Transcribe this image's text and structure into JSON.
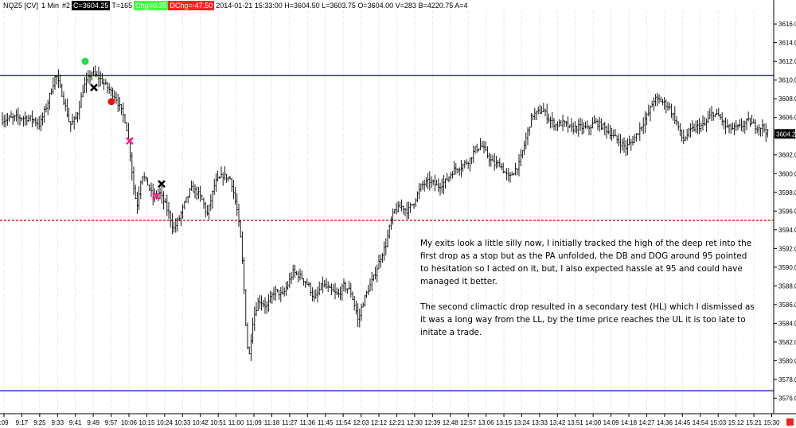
{
  "header": {
    "symbol": "NQZ5 [CV]",
    "interval": "1 Min",
    "chart_no": "#2",
    "close": "C=3604.25",
    "ticks": "T=165",
    "chg": "Chg=0.25",
    "dchg": "DChg=-47.50",
    "stats": "2014-01-21 15:33:00 H=3604.50 L=3603.75 O=3604.00 V=283 B=4220.75 A=4221.00 1x8 0 BV=217 AV=66 DV=68876"
  },
  "colors": {
    "grid": "#bdbdbd",
    "candle": "#000000",
    "resistance_line": "#0000cc",
    "support_line": "#0000cc",
    "dotted_line": "#e01010",
    "green_marker": "#22dd44",
    "red_marker": "#ee1111",
    "pink_marker": "#ff1f8f",
    "black_marker": "#000000",
    "price_label_bg": "#000000",
    "corner_box": "#e8261f"
  },
  "annotation": {
    "paragraph1": "My exits look a little silly now, I initially tracked the high of the deep ret into the first drop as a stop but as the PA unfolded, the DB and DOG around 95 pointed to hesitation so I acted on it, but, I also expected hassle at 95 and could have managed it better.",
    "paragraph2": "The second climactic drop resulted in a secondary test (HL) which I dismissed as it was a long way from the LL, by the time price reaches the UL it is too late to initate a trade."
  },
  "chart_data": {
    "type": "candlestick",
    "ylim": [
      3574,
      3618
    ],
    "y_ticks": [
      "3576.00",
      "3578.00",
      "3580.00",
      "3582.00",
      "3584.00",
      "3586.00",
      "3588.00",
      "3590.00",
      "3592.00",
      "3594.00",
      "3596.00",
      "3598.00",
      "3600.00",
      "3602.00",
      "3604.00",
      "3606.00",
      "3608.00",
      "3610.00",
      "3612.00",
      "3614.00",
      "3616.00"
    ],
    "x_ticks": [
      ":09",
      "9:17",
      "9:25",
      "9:33",
      "9:41",
      "9:49",
      "9:57",
      "10:06",
      "10:15",
      "10:24",
      "10:33",
      "10:42",
      "10:51",
      "11:00",
      "11:09",
      "11:18",
      "11:27",
      "11:36",
      "11:45",
      "11:54",
      "12:03",
      "12:12",
      "12:21",
      "12:30",
      "12:39",
      "12:48",
      "12:57",
      "13:06",
      "13:15",
      "13:24",
      "13:33",
      "13:42",
      "13:51",
      "14:00",
      "14:09",
      "14:18",
      "14:27",
      "14:36",
      "14:45",
      "14:54",
      "15:03",
      "15:12",
      "15:21",
      "15:30"
    ],
    "last_price_label": "3604.25",
    "last_price": 3604.25,
    "horizontal_lines": [
      {
        "price": 3610.5,
        "style": "solid",
        "role": "upper"
      },
      {
        "price": 3595.0,
        "style": "dotted",
        "role": "middle"
      },
      {
        "price": 3576.8,
        "style": "solid",
        "role": "lower"
      }
    ],
    "close_path": [
      [
        0,
        3605.7
      ],
      [
        20,
        3606.0
      ],
      [
        40,
        3605.9
      ],
      [
        50,
        3605.2
      ],
      [
        60,
        3607.6
      ],
      [
        70,
        3610.6
      ],
      [
        78,
        3608.5
      ],
      [
        88,
        3605.2
      ],
      [
        96,
        3606.0
      ],
      [
        105,
        3609.2
      ],
      [
        115,
        3610.8
      ],
      [
        125,
        3610.2
      ],
      [
        135,
        3609.2
      ],
      [
        145,
        3608.2
      ],
      [
        152,
        3606.8
      ],
      [
        158,
        3605.5
      ],
      [
        163,
        3602.6
      ],
      [
        168,
        3598.5
      ],
      [
        172,
        3596.5
      ],
      [
        178,
        3600.0
      ],
      [
        185,
        3599.0
      ],
      [
        192,
        3597.5
      ],
      [
        200,
        3598.0
      ],
      [
        207,
        3596.8
      ],
      [
        213,
        3595.5
      ],
      [
        218,
        3594.0
      ],
      [
        225,
        3595.2
      ],
      [
        232,
        3596.8
      ],
      [
        240,
        3598.4
      ],
      [
        248,
        3598.0
      ],
      [
        255,
        3597.0
      ],
      [
        260,
        3595.5
      ],
      [
        265,
        3597.2
      ],
      [
        270,
        3599.0
      ],
      [
        280,
        3599.8
      ],
      [
        290,
        3599.4
      ],
      [
        298,
        3596.0
      ],
      [
        303,
        3592.5
      ],
      [
        307,
        3587.0
      ],
      [
        310,
        3582.0
      ],
      [
        313,
        3580.5
      ],
      [
        318,
        3584.5
      ],
      [
        325,
        3586.5
      ],
      [
        335,
        3585.8
      ],
      [
        345,
        3587.5
      ],
      [
        355,
        3587.0
      ],
      [
        362,
        3588.2
      ],
      [
        368,
        3589.5
      ],
      [
        378,
        3589.0
      ],
      [
        388,
        3588.0
      ],
      [
        395,
        3586.5
      ],
      [
        405,
        3588.2
      ],
      [
        415,
        3587.5
      ],
      [
        425,
        3587.0
      ],
      [
        432,
        3588.0
      ],
      [
        440,
        3587.5
      ],
      [
        447,
        3585.5
      ],
      [
        450,
        3584.2
      ],
      [
        455,
        3586.0
      ],
      [
        462,
        3587.5
      ],
      [
        470,
        3589.0
      ],
      [
        478,
        3591.0
      ],
      [
        485,
        3592.5
      ],
      [
        490,
        3594.5
      ],
      [
        495,
        3596.0
      ],
      [
        505,
        3596.5
      ],
      [
        512,
        3596.0
      ],
      [
        520,
        3597.0
      ],
      [
        530,
        3598.8
      ],
      [
        540,
        3599.2
      ],
      [
        550,
        3598.6
      ],
      [
        560,
        3599.2
      ],
      [
        570,
        3600.4
      ],
      [
        580,
        3600.8
      ],
      [
        590,
        3601.5
      ],
      [
        597,
        3602.6
      ],
      [
        605,
        3603.0
      ],
      [
        612,
        3602.0
      ],
      [
        620,
        3601.0
      ],
      [
        628,
        3601.0
      ],
      [
        635,
        3600.0
      ],
      [
        640,
        3599.5
      ],
      [
        645,
        3600.2
      ],
      [
        652,
        3601.0
      ],
      [
        660,
        3603.5
      ],
      [
        668,
        3606.2
      ],
      [
        675,
        3606.5
      ],
      [
        682,
        3606.8
      ],
      [
        690,
        3605.8
      ],
      [
        698,
        3605.2
      ],
      [
        708,
        3605.4
      ],
      [
        718,
        3604.8
      ],
      [
        728,
        3605.0
      ],
      [
        738,
        3604.8
      ],
      [
        748,
        3605.5
      ],
      [
        758,
        3605.0
      ],
      [
        768,
        3604.2
      ],
      [
        778,
        3603.4
      ],
      [
        786,
        3602.8
      ],
      [
        795,
        3603.5
      ],
      [
        805,
        3605.0
      ],
      [
        815,
        3606.5
      ],
      [
        822,
        3608.0
      ],
      [
        830,
        3607.8
      ],
      [
        840,
        3607.2
      ],
      [
        850,
        3605.5
      ],
      [
        858,
        3603.5
      ],
      [
        866,
        3604.5
      ],
      [
        875,
        3605.0
      ],
      [
        885,
        3605.2
      ],
      [
        895,
        3606.5
      ],
      [
        905,
        3606.0
      ],
      [
        912,
        3605.0
      ],
      [
        920,
        3604.8
      ],
      [
        930,
        3605.0
      ],
      [
        940,
        3605.6
      ],
      [
        950,
        3605.0
      ],
      [
        958,
        3605.0
      ],
      [
        965,
        3604.25
      ]
    ],
    "markers": [
      {
        "type": "dot",
        "color": "green",
        "x": 107,
        "price": 3612.0
      },
      {
        "type": "cross",
        "color": "black",
        "x": 118,
        "price": 3609.2
      },
      {
        "type": "dot",
        "color": "red",
        "x": 140,
        "price": 3607.7
      },
      {
        "type": "cross",
        "color": "pink",
        "x": 163,
        "price": 3603.5
      },
      {
        "type": "cross",
        "color": "black",
        "x": 203,
        "price": 3598.9
      },
      {
        "type": "cross",
        "color": "pink",
        "x": 196,
        "price": 3597.6
      }
    ]
  }
}
